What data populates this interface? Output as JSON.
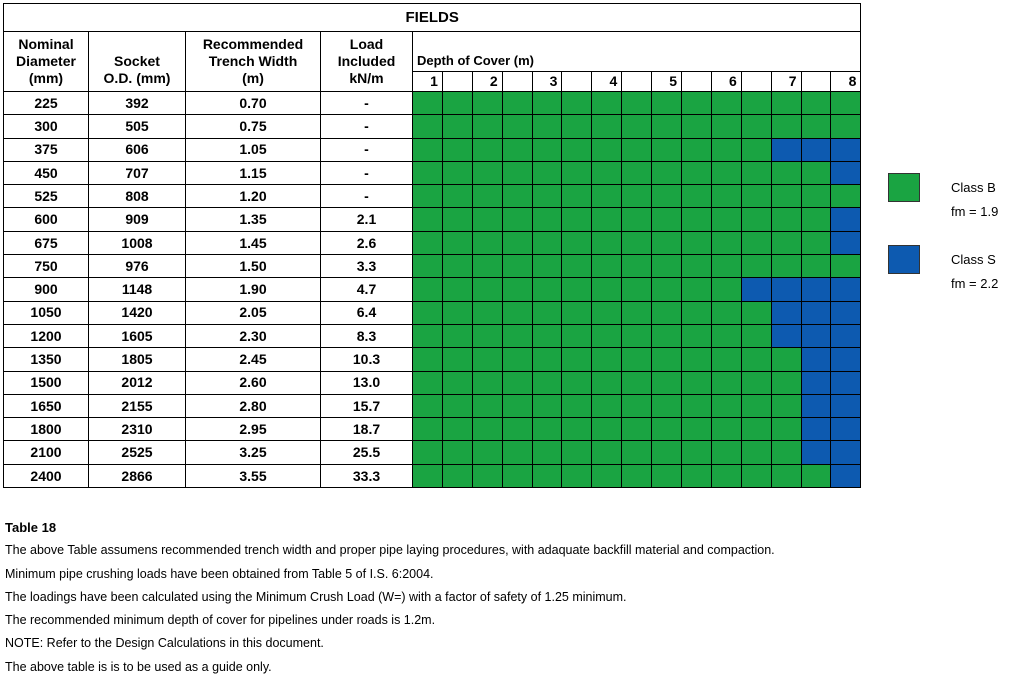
{
  "title": "FIELDS",
  "headers": {
    "nominal": [
      "Nominal",
      "Diameter",
      "(mm)"
    ],
    "socket": [
      "Socket",
      "O.D. (mm)"
    ],
    "trench": [
      "Recommended",
      "Trench Width",
      "(m)"
    ],
    "load": [
      "Load",
      "Included",
      "kN/m"
    ],
    "depth": "Depth of Cover (m)"
  },
  "depth_labels": [
    "1",
    "",
    "2",
    "",
    "3",
    "",
    "4",
    "",
    "5",
    "",
    "6",
    "",
    "7",
    "",
    "8"
  ],
  "rows": [
    {
      "nd": "225",
      "od": "392",
      "tw": "0.70",
      "load": "-",
      "cls": "BBBBBBBBBBBBBBB"
    },
    {
      "nd": "300",
      "od": "505",
      "tw": "0.75",
      "load": "-",
      "cls": "BBBBBBBBBBBBBBB"
    },
    {
      "nd": "375",
      "od": "606",
      "tw": "1.05",
      "load": "-",
      "cls": "BBBBBBBBBBBBSSS"
    },
    {
      "nd": "450",
      "od": "707",
      "tw": "1.15",
      "load": "-",
      "cls": "BBBBBBBBBBBBBBS"
    },
    {
      "nd": "525",
      "od": "808",
      "tw": "1.20",
      "load": "-",
      "cls": "BBBBBBBBBBBBBBB"
    },
    {
      "nd": "600",
      "od": "909",
      "tw": "1.35",
      "load": "2.1",
      "cls": "BBBBBBBBBBBBBBS"
    },
    {
      "nd": "675",
      "od": "1008",
      "tw": "1.45",
      "load": "2.6",
      "cls": "BBBBBBBBBBBBBBS"
    },
    {
      "nd": "750",
      "od": "976",
      "tw": "1.50",
      "load": "3.3",
      "cls": "BBBBBBBBBBBBBBB"
    },
    {
      "nd": "900",
      "od": "1148",
      "tw": "1.90",
      "load": "4.7",
      "cls": "BBBBBBBBBBBSSSS"
    },
    {
      "nd": "1050",
      "od": "1420",
      "tw": "2.05",
      "load": "6.4",
      "cls": "BBBBBBBBBBBBSSS"
    },
    {
      "nd": "1200",
      "od": "1605",
      "tw": "2.30",
      "load": "8.3",
      "cls": "BBBBBBBBBBBBSSS"
    },
    {
      "nd": "1350",
      "od": "1805",
      "tw": "2.45",
      "load": "10.3",
      "cls": "BBBBBBBBBBBBBSS"
    },
    {
      "nd": "1500",
      "od": "2012",
      "tw": "2.60",
      "load": "13.0",
      "cls": "BBBBBBBBBBBBBSS"
    },
    {
      "nd": "1650",
      "od": "2155",
      "tw": "2.80",
      "load": "15.7",
      "cls": "BBBBBBBBBBBBBSS"
    },
    {
      "nd": "1800",
      "od": "2310",
      "tw": "2.95",
      "load": "18.7",
      "cls": "BBBBBBBBBBBBBSS"
    },
    {
      "nd": "2100",
      "od": "2525",
      "tw": "3.25",
      "load": "25.5",
      "cls": "BBBBBBBBBBBBBSS"
    },
    {
      "nd": "2400",
      "od": "2866",
      "tw": "3.55",
      "load": "33.3",
      "cls": "BBBBBBBBBBBBBBS"
    }
  ],
  "legend": [
    {
      "label": "Class B",
      "fm": "fm = 1.9",
      "color": "#1aa442"
    },
    {
      "label": "Class S",
      "fm": "fm = 2.2",
      "color": "#0d5ab0"
    }
  ],
  "notes": {
    "table_label": "Table 18",
    "lines": [
      "The above Table assumens recommended trench width and proper pipe laying procedures, with adaquate backfill material and compaction.",
      "Minimum pipe crushing loads have been obtained from Table 5 of I.S. 6:2004.",
      "The loadings have been calculated using the Minimum Crush Load (W=) with a factor of safety of 1.25 minimum.",
      "The recommended minimum depth of cover for pipelines under roads is 1.2m.",
      "NOTE: Refer to the Design Calculations in this document.",
      "The above table is is to be used as a guide only."
    ]
  }
}
